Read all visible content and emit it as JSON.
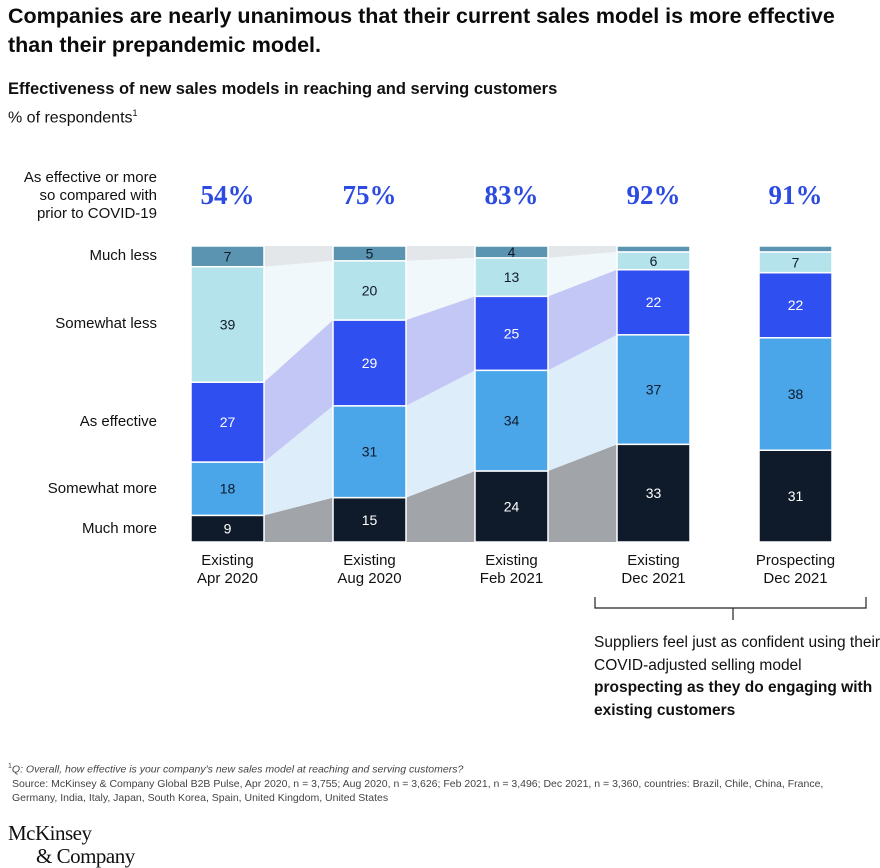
{
  "title": "Companies are nearly unanimous that their current sales model is more effective than their prepandemic model.",
  "subtitle": "Effectiveness of new sales models in reaching and serving customers",
  "unit": "% of respondents",
  "unit_footnote": "1",
  "top_row_label": "As effective or more so compared with prior to COVID-19",
  "chart_data": {
    "type": "bar",
    "stacked": true,
    "title": "Effectiveness of new sales models in reaching and serving customers",
    "ylabel": "% of respondents",
    "ylim": [
      0,
      100
    ],
    "categories": [
      "Existing Apr 2020",
      "Existing Aug 2020",
      "Existing Feb 2021",
      "Existing Dec 2021",
      "Prospecting Dec 2021"
    ],
    "category_lines": [
      [
        "Existing",
        "Apr 2020"
      ],
      [
        "Existing",
        "Aug 2020"
      ],
      [
        "Existing",
        "Feb 2021"
      ],
      [
        "Existing",
        "Dec 2021"
      ],
      [
        "Prospecting",
        "Dec 2021"
      ]
    ],
    "headline_values": [
      "54%",
      "75%",
      "83%",
      "92%",
      "91%"
    ],
    "series": [
      {
        "name": "Much more",
        "values": [
          9,
          15,
          24,
          33,
          31
        ],
        "color": "#0f1b2a",
        "flow_color": "#a1a5a9",
        "label_color": "#ffffff"
      },
      {
        "name": "Somewhat more",
        "values": [
          18,
          31,
          34,
          37,
          38
        ],
        "color": "#4ba5e9",
        "flow_color": "#deedfa",
        "label_color": "#0f1b2a"
      },
      {
        "name": "As effective",
        "values": [
          27,
          29,
          25,
          22,
          22
        ],
        "color": "#2f4ff0",
        "flow_color": "#c3c7f5",
        "label_color": "#ffffff"
      },
      {
        "name": "Somewhat less",
        "values": [
          39,
          20,
          13,
          6,
          7
        ],
        "color": "#b4e3eb",
        "flow_color": "#f1f8fb",
        "label_color": "#0f1b2a"
      },
      {
        "name": "Much less",
        "values": [
          7,
          5,
          4,
          2,
          2
        ],
        "labels": [
          "7",
          "5",
          "4",
          "",
          ""
        ],
        "color": "#5b94b1",
        "flow_color": "#e3e7e9",
        "label_color": "#0f1b2a"
      }
    ],
    "flows_between": [
      [
        0,
        1
      ],
      [
        1,
        2
      ],
      [
        2,
        3
      ]
    ],
    "legend": "left-row-labels",
    "grid": false
  },
  "annotation": {
    "text_plain": "Suppliers feel just as confident using their COVID-adjusted selling model ",
    "text_bold": "prospecting as they do engaging with existing customers"
  },
  "footnote": {
    "marker": "1",
    "question": "Q: Overall, how effective is your company's new sales model at reaching and serving customers?",
    "source": "Source: McKinsey & Company Global B2B Pulse, Apr 2020, n = 3,755; Aug 2020, n = 3,626; Feb 2021, n = 3,496; Dec 2021, n = 3,360, countries: Brazil, Chile, China, France, Germany, India, Italy, Japan, South Korea, Spain, United Kingdom, United States"
  },
  "logo": {
    "line1": "McKinsey",
    "line2": "& Company"
  }
}
